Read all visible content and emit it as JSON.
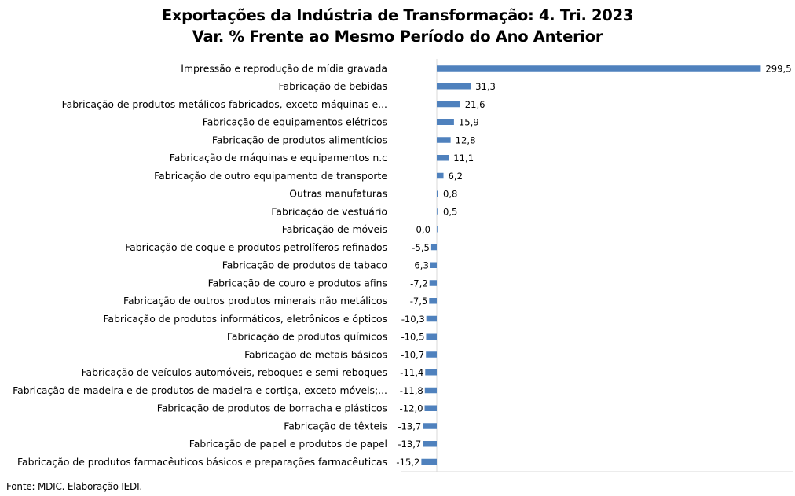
{
  "chart_data": {
    "type": "bar",
    "orientation": "horizontal",
    "title": "Exportações da Indústria de Transformação: 4. Tri. 2023",
    "subtitle": "Var. % Frente ao Mesmo Período do Ano Anterior",
    "xlabel": "",
    "ylabel": "",
    "xlim": [
      -15.2,
      299.5
    ],
    "grid": false,
    "legend": "none",
    "bar_color": "#4f81bd",
    "categories": [
      "Impressão e reprodução de mídia gravada",
      "Fabricação de bebidas",
      "Fabricação de produtos metálicos fabricados, exceto máquinas e...",
      "Fabricação de equipamentos elétricos",
      "Fabricação de produtos alimentícios",
      "Fabricação de máquinas e equipamentos n.c",
      "Fabricação de outro equipamento de transporte",
      "Outras manufaturas",
      "Fabricação de vestuário",
      "Fabricação de móveis",
      "Fabricação de coque e produtos petrolíferos refinados",
      "Fabricação de produtos de tabaco",
      "Fabricação de couro e produtos afins",
      "Fabricação de outros produtos minerais não metálicos",
      "Fabricação de produtos informáticos, eletrônicos e ópticos",
      "Fabricação de produtos químicos",
      "Fabricação de metais básicos",
      "Fabricação de veículos automóveis, reboques e semi-reboques",
      "Fabricação de madeira e de produtos de madeira e cortiça, exceto móveis;...",
      "Fabricação de produtos de borracha e plásticos",
      "Fabricação de têxteis",
      "Fabricação de papel e produtos de papel",
      "Fabricação de produtos farmacêuticos básicos e preparações farmacêuticas"
    ],
    "values": [
      299.5,
      31.3,
      21.6,
      15.9,
      12.8,
      11.1,
      6.2,
      0.8,
      0.5,
      0.0,
      -5.5,
      -6.3,
      -7.2,
      -7.5,
      -10.3,
      -10.5,
      -10.7,
      -11.4,
      -11.8,
      -12.0,
      -13.7,
      -13.7,
      -15.2
    ],
    "value_labels": [
      "299,5",
      "31,3",
      "21,6",
      "15,9",
      "12,8",
      "11,1",
      "6,2",
      "0,8",
      "0,5",
      "0,0",
      "-5,5",
      "-6,3",
      "-7,2",
      "-7,5",
      "-10,3",
      "-10,5",
      "-10,7",
      "-11,4",
      "-11,8",
      "-12,0",
      "-13,7",
      "-13,7",
      "-15,2"
    ]
  },
  "source": "Fonte: MDIC. Elaboração IEDI."
}
